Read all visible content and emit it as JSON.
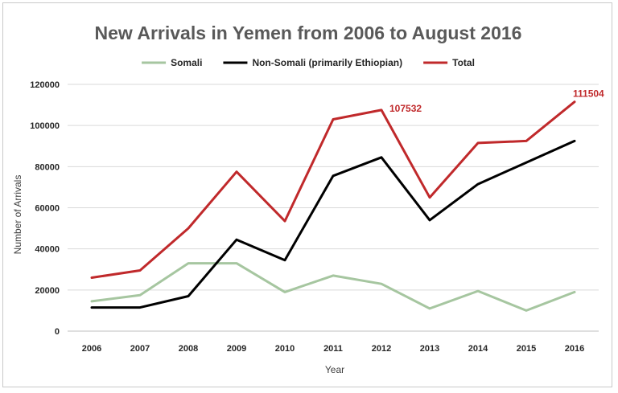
{
  "chart_data": {
    "type": "line",
    "title": "New Arrivals in Yemen from 2006 to August 2016",
    "xlabel": "Year",
    "ylabel": "Number of Arrivals",
    "ylim": [
      0,
      120000
    ],
    "yticks": [
      0,
      20000,
      40000,
      60000,
      80000,
      100000,
      120000
    ],
    "categories": [
      "2006",
      "2007",
      "2008",
      "2009",
      "2010",
      "2011",
      "2012",
      "2013",
      "2014",
      "2015",
      "2016"
    ],
    "grid": "horizontal",
    "legend_position": "top",
    "series": [
      {
        "name": "Somali",
        "color": "#a6c6a0",
        "values": [
          14500,
          17500,
          33000,
          33000,
          19000,
          27000,
          23000,
          11000,
          19500,
          10000,
          19000
        ]
      },
      {
        "name": "Non-Somali (primarily Ethiopian)",
        "color": "#000000",
        "values": [
          11500,
          11500,
          17000,
          44500,
          34500,
          75500,
          84500,
          54000,
          71500,
          82000,
          92500
        ]
      },
      {
        "name": "Total",
        "color": "#c0292b",
        "values": [
          26000,
          29500,
          50000,
          77500,
          53500,
          103000,
          107532,
          65000,
          91500,
          92500,
          111504
        ]
      }
    ],
    "annotations": [
      {
        "series": "Total",
        "category": "2012",
        "text": "107532"
      },
      {
        "series": "Total",
        "category": "2016",
        "text": "111504"
      }
    ]
  }
}
